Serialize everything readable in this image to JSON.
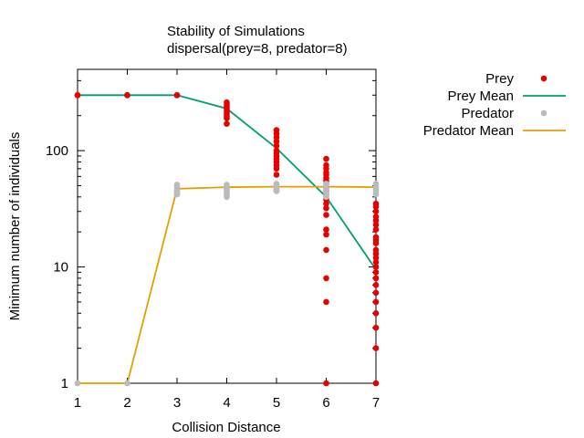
{
  "chart_data": {
    "type": "scatter",
    "title_lines": [
      "Stability of Simulations",
      "dispersal(prey=8, predator=8)"
    ],
    "xlabel": "Collision Distance",
    "ylabel": "Minimum number of individuals",
    "xlim": [
      1,
      7
    ],
    "ylim": [
      1,
      500
    ],
    "y_scale": "log",
    "x_ticks": [
      1,
      2,
      3,
      4,
      5,
      6,
      7
    ],
    "y_ticks": [
      1,
      10,
      100
    ],
    "grid": false,
    "legend_position": "outside-right",
    "series": [
      {
        "name": "Prey",
        "style": "points",
        "color": "#e60000",
        "points": [
          [
            1,
            300
          ],
          [
            1,
            300
          ],
          [
            1,
            300
          ],
          [
            2,
            300
          ],
          [
            2,
            300
          ],
          [
            2,
            300
          ],
          [
            3,
            300
          ],
          [
            3,
            300
          ],
          [
            3,
            300
          ],
          [
            4,
            260
          ],
          [
            4,
            250
          ],
          [
            4,
            240
          ],
          [
            4,
            230
          ],
          [
            4,
            220
          ],
          [
            4,
            210
          ],
          [
            4,
            200
          ],
          [
            4,
            190
          ],
          [
            4,
            170
          ],
          [
            5,
            150
          ],
          [
            5,
            140
          ],
          [
            5,
            130
          ],
          [
            5,
            120
          ],
          [
            5,
            110
          ],
          [
            5,
            100
          ],
          [
            5,
            95
          ],
          [
            5,
            90
          ],
          [
            5,
            85
          ],
          [
            5,
            80
          ],
          [
            5,
            75
          ],
          [
            5,
            70
          ],
          [
            5,
            62
          ],
          [
            5,
            45
          ],
          [
            6,
            85
          ],
          [
            6,
            75
          ],
          [
            6,
            70
          ],
          [
            6,
            65
          ],
          [
            6,
            62
          ],
          [
            6,
            58
          ],
          [
            6,
            55
          ],
          [
            6,
            52
          ],
          [
            6,
            48
          ],
          [
            6,
            45
          ],
          [
            6,
            42
          ],
          [
            6,
            38
          ],
          [
            6,
            35
          ],
          [
            6,
            32
          ],
          [
            6,
            28
          ],
          [
            6,
            21
          ],
          [
            6,
            19
          ],
          [
            6,
            14
          ],
          [
            6,
            8
          ],
          [
            6,
            5
          ],
          [
            6,
            1
          ],
          [
            7,
            35
          ],
          [
            7,
            33
          ],
          [
            7,
            30
          ],
          [
            7,
            27
          ],
          [
            7,
            25
          ],
          [
            7,
            23
          ],
          [
            7,
            21
          ],
          [
            7,
            18
          ],
          [
            7,
            17
          ],
          [
            7,
            16
          ],
          [
            7,
            14
          ],
          [
            7,
            13
          ],
          [
            7,
            12
          ],
          [
            7,
            11
          ],
          [
            7,
            10
          ],
          [
            7,
            9
          ],
          [
            7,
            8
          ],
          [
            7,
            7
          ],
          [
            7,
            6
          ],
          [
            7,
            5
          ],
          [
            7,
            4
          ],
          [
            7,
            3
          ],
          [
            7,
            2
          ],
          [
            7,
            1
          ]
        ]
      },
      {
        "name": "Prey Mean",
        "style": "line",
        "color": "#009e73",
        "points": [
          [
            1,
            300
          ],
          [
            2,
            300
          ],
          [
            3,
            300
          ],
          [
            4,
            230
          ],
          [
            5,
            105
          ],
          [
            6,
            40
          ],
          [
            7,
            9.5
          ]
        ]
      },
      {
        "name": "Predator",
        "style": "points",
        "color": "#bbbbbb",
        "points": [
          [
            1,
            1
          ],
          [
            2,
            1
          ],
          [
            3,
            51
          ],
          [
            3,
            49
          ],
          [
            3,
            47
          ],
          [
            3,
            46
          ],
          [
            3,
            45
          ],
          [
            3,
            44
          ],
          [
            3,
            43
          ],
          [
            3,
            42
          ],
          [
            4,
            51
          ],
          [
            4,
            49
          ],
          [
            4,
            48
          ],
          [
            4,
            47
          ],
          [
            4,
            46
          ],
          [
            4,
            45
          ],
          [
            4,
            44
          ],
          [
            4,
            42
          ],
          [
            4,
            40
          ],
          [
            5,
            52
          ],
          [
            5,
            51
          ],
          [
            5,
            50
          ],
          [
            5,
            49
          ],
          [
            5,
            48
          ],
          [
            5,
            47
          ],
          [
            5,
            46
          ],
          [
            5,
            45
          ],
          [
            6,
            52
          ],
          [
            6,
            50
          ],
          [
            6,
            48
          ],
          [
            6,
            46
          ],
          [
            6,
            45
          ],
          [
            6,
            44
          ],
          [
            6,
            42
          ],
          [
            6,
            40
          ],
          [
            7,
            52
          ],
          [
            7,
            50
          ],
          [
            7,
            48
          ],
          [
            7,
            46
          ],
          [
            7,
            44
          ],
          [
            7,
            42
          ]
        ]
      },
      {
        "name": "Predator Mean",
        "style": "line",
        "color": "#e69f00",
        "points": [
          [
            1,
            1
          ],
          [
            2,
            1
          ],
          [
            3,
            47
          ],
          [
            4,
            48.5
          ],
          [
            5,
            49
          ],
          [
            6,
            49
          ],
          [
            7,
            48.5
          ]
        ]
      }
    ]
  }
}
